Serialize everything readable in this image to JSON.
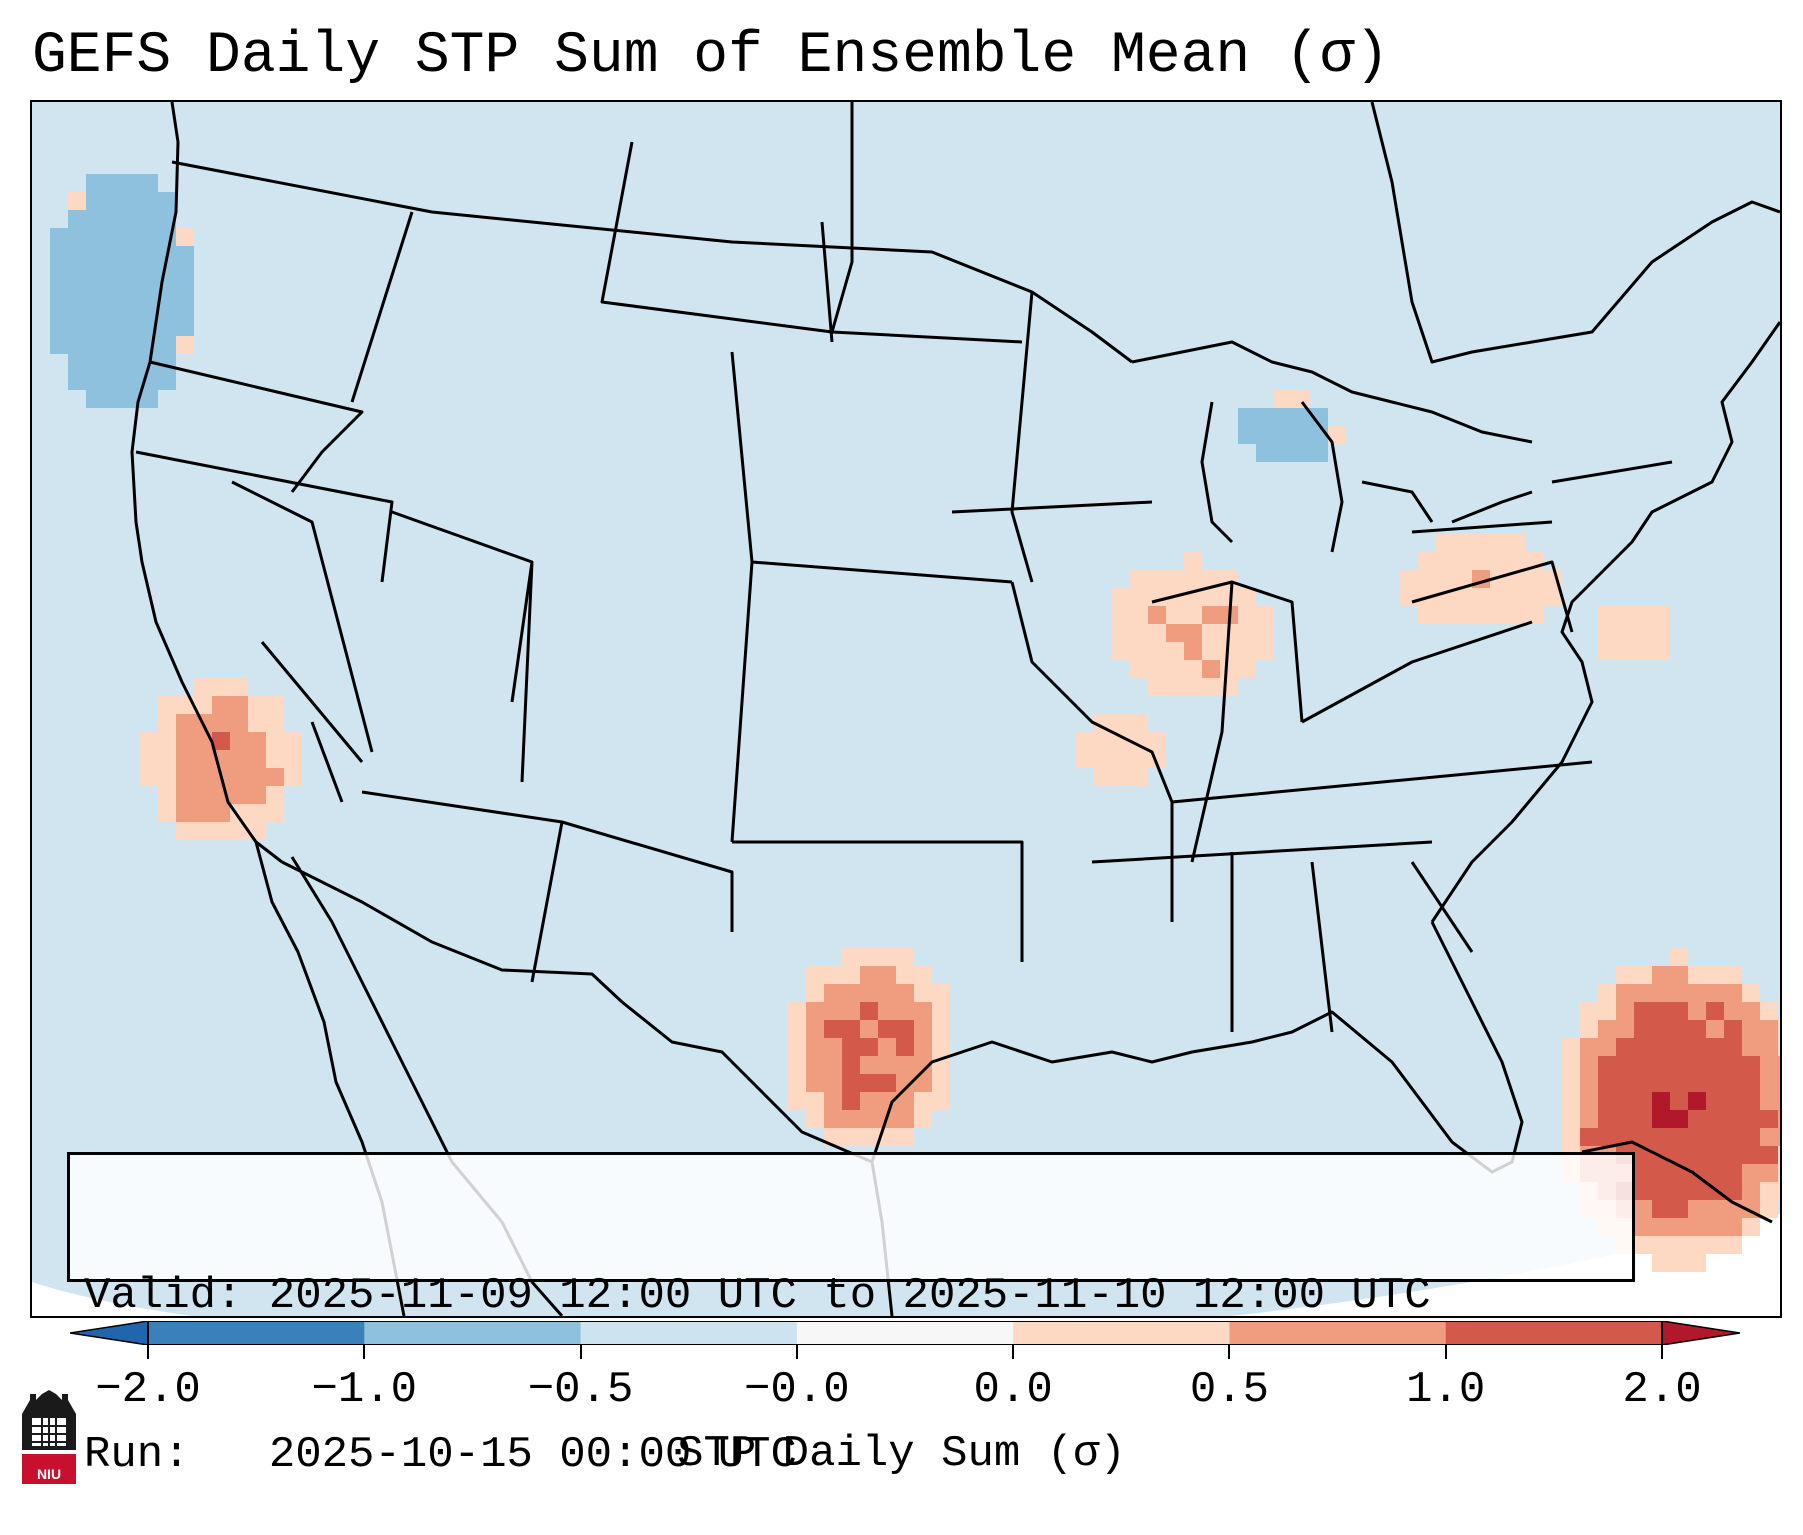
{
  "title": "GEFS Daily STP Sum of Ensemble Mean (σ)",
  "valid_box": {
    "valid_line": "Valid: 2025-11-09 12:00 UTC to 2025-11-10 12:00 UTC",
    "run_line": "Run:   2025-10-15 00:00 UTC"
  },
  "colorbar": {
    "label": "STP Daily Sum (σ)",
    "ticks": [
      "−2.0",
      "−1.0",
      "−0.5",
      "−0.0",
      "0.0",
      "0.5",
      "1.0",
      "2.0"
    ],
    "bin_colors": [
      "#3a80b9",
      "#8dc1dd",
      "#cde3ef",
      "#f7f7f7",
      "#fdd9c4",
      "#f09d7f",
      "#d35a4a"
    ],
    "extend_min_color": "#2166ac",
    "extend_max_color": "#b2182b"
  },
  "map": {
    "background_color": "#d1e5f0",
    "outside_color": "#ffffff",
    "line_color": "#000000"
  },
  "logo": {
    "text": "NIU",
    "color": "#c8102e"
  }
}
